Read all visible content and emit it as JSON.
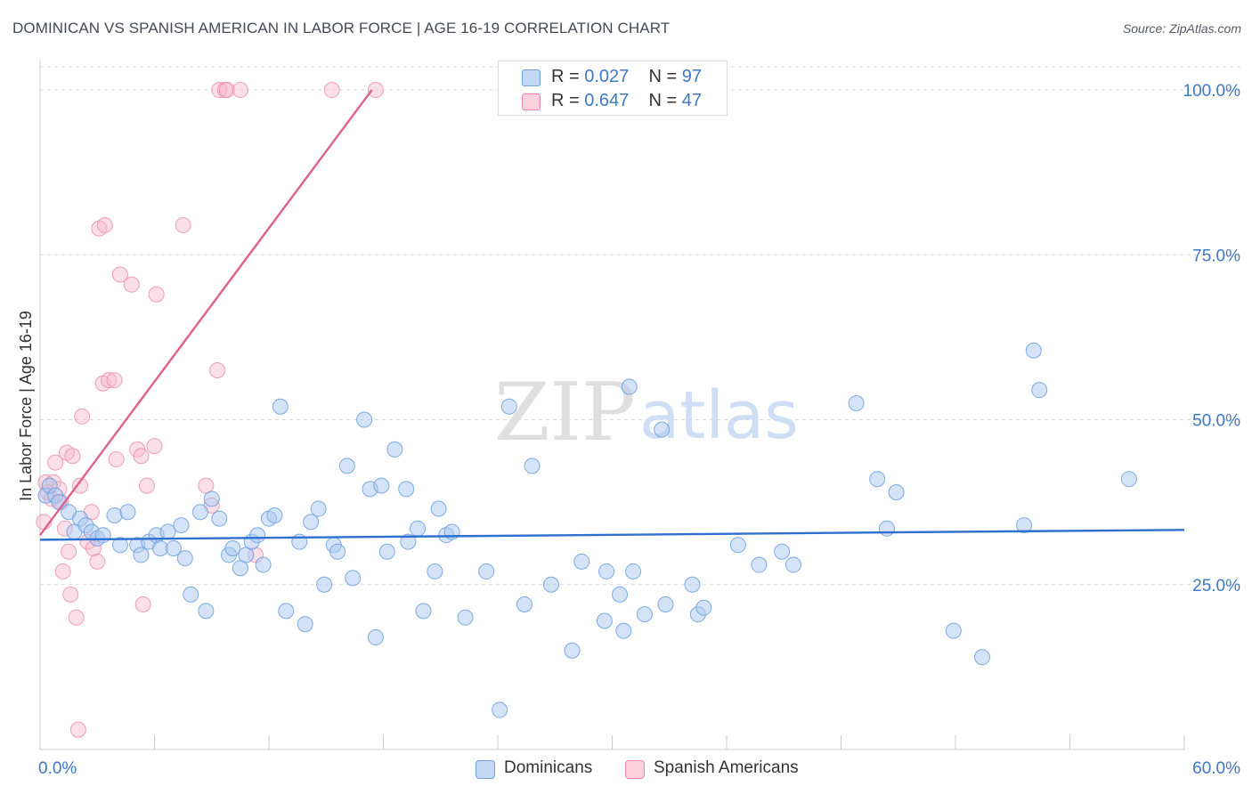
{
  "header": {
    "title": "DOMINICAN VS SPANISH AMERICAN IN LABOR FORCE | AGE 16-19 CORRELATION CHART",
    "source": "Source: ZipAtlas.com"
  },
  "watermark": {
    "zip": "ZIP",
    "atlas": "atlas"
  },
  "legend": {
    "rows": [
      {
        "r_label": "R = ",
        "r_value": "0.027",
        "n_label": "N = ",
        "n_value": "97",
        "color": "#a9c8ef"
      },
      {
        "r_label": "R = ",
        "r_value": "0.647",
        "n_label": "N = ",
        "n_value": "47",
        "color": "#f6b9cb"
      }
    ]
  },
  "bottom_legend": {
    "items": [
      {
        "label": "Dominicans",
        "color": "#a9c8ef"
      },
      {
        "label": "Spanish Americans",
        "color": "#f6b9cb"
      }
    ]
  },
  "chart_data": {
    "type": "scatter",
    "title": "DOMINICAN VS SPANISH AMERICAN IN LABOR FORCE | AGE 16-19 CORRELATION CHART",
    "xlabel": "",
    "ylabel": "In Labor Force | Age 16-19",
    "xlim": [
      0,
      60
    ],
    "ylim": [
      0,
      105
    ],
    "x_tick_labels": [
      "0.0%",
      "60.0%"
    ],
    "y_ticks": [
      25,
      50,
      75,
      100
    ],
    "y_tick_labels": [
      "25.0%",
      "50.0%",
      "75.0%",
      "100.0%"
    ],
    "grid": true,
    "series": [
      {
        "name": "Dominicans",
        "color": "#a9c8ef",
        "stroke": "#6a9fe0",
        "line_color": "#2f6fd0",
        "trend": {
          "x": [
            0,
            60
          ],
          "y": [
            31.8,
            33.3
          ]
        },
        "points": [
          [
            0.3,
            38.5
          ],
          [
            0.5,
            40
          ],
          [
            0.8,
            38.5
          ],
          [
            1.0,
            37.5
          ],
          [
            1.5,
            36
          ],
          [
            1.8,
            33
          ],
          [
            2.1,
            35
          ],
          [
            2.4,
            34
          ],
          [
            2.7,
            33
          ],
          [
            3.0,
            32
          ],
          [
            3.3,
            32.5
          ],
          [
            3.9,
            35.5
          ],
          [
            4.2,
            31
          ],
          [
            4.6,
            36
          ],
          [
            5.1,
            31
          ],
          [
            5.3,
            29.5
          ],
          [
            5.7,
            31.5
          ],
          [
            6.1,
            32.5
          ],
          [
            6.3,
            30.5
          ],
          [
            6.7,
            33
          ],
          [
            7.0,
            30.5
          ],
          [
            7.4,
            34
          ],
          [
            7.6,
            29
          ],
          [
            7.9,
            23.5
          ],
          [
            8.4,
            36
          ],
          [
            8.7,
            21
          ],
          [
            9.0,
            38
          ],
          [
            9.4,
            35
          ],
          [
            9.9,
            29.5
          ],
          [
            10.1,
            30.5
          ],
          [
            10.5,
            27.5
          ],
          [
            10.8,
            29.5
          ],
          [
            11.1,
            31.5
          ],
          [
            11.4,
            32.5
          ],
          [
            11.7,
            28
          ],
          [
            12.0,
            35
          ],
          [
            12.3,
            35.5
          ],
          [
            12.6,
            52
          ],
          [
            12.9,
            21
          ],
          [
            13.6,
            31.5
          ],
          [
            13.9,
            19
          ],
          [
            14.2,
            34.5
          ],
          [
            14.6,
            36.5
          ],
          [
            14.9,
            25
          ],
          [
            15.4,
            31
          ],
          [
            15.6,
            30
          ],
          [
            16.1,
            43
          ],
          [
            16.4,
            26
          ],
          [
            17.0,
            50
          ],
          [
            17.3,
            39.5
          ],
          [
            17.6,
            17
          ],
          [
            17.9,
            40
          ],
          [
            18.2,
            30
          ],
          [
            18.6,
            45.5
          ],
          [
            19.2,
            39.5
          ],
          [
            19.3,
            31.5
          ],
          [
            19.8,
            33.5
          ],
          [
            20.1,
            21
          ],
          [
            20.7,
            27
          ],
          [
            20.9,
            36.5
          ],
          [
            21.3,
            32.5
          ],
          [
            21.6,
            33
          ],
          [
            22.3,
            20
          ],
          [
            23.4,
            27
          ],
          [
            24.1,
            6
          ],
          [
            24.6,
            52
          ],
          [
            25.4,
            22
          ],
          [
            25.8,
            43
          ],
          [
            26.8,
            25
          ],
          [
            27.9,
            15
          ],
          [
            28.4,
            28.5
          ],
          [
            29.6,
            19.5
          ],
          [
            29.7,
            27
          ],
          [
            30.4,
            23.5
          ],
          [
            30.6,
            18
          ],
          [
            30.9,
            55
          ],
          [
            31.1,
            27
          ],
          [
            31.7,
            20.5
          ],
          [
            32.6,
            48.5
          ],
          [
            32.8,
            22
          ],
          [
            34.2,
            25
          ],
          [
            34.5,
            20.5
          ],
          [
            34.8,
            21.5
          ],
          [
            36.6,
            31
          ],
          [
            37.7,
            28
          ],
          [
            38.9,
            30
          ],
          [
            39.5,
            28
          ],
          [
            42.8,
            52.5
          ],
          [
            43.9,
            41
          ],
          [
            44.4,
            33.5
          ],
          [
            44.9,
            39
          ],
          [
            47.9,
            18
          ],
          [
            49.4,
            14
          ],
          [
            51.6,
            34
          ],
          [
            52.1,
            60.5
          ],
          [
            52.4,
            54.5
          ],
          [
            57.1,
            41
          ]
        ]
      },
      {
        "name": "Spanish Americans",
        "color": "#f6b9cb",
        "stroke": "#ec8aa8",
        "line_color": "#e05f8d",
        "trend": {
          "x": [
            0,
            17.4
          ],
          "y": [
            32.5,
            100
          ]
        },
        "points": [
          [
            0.2,
            34.5
          ],
          [
            0.3,
            40.5
          ],
          [
            0.4,
            39
          ],
          [
            0.7,
            40.5
          ],
          [
            0.8,
            43.5
          ],
          [
            1.0,
            39.5
          ],
          [
            1.1,
            37.5
          ],
          [
            1.2,
            27
          ],
          [
            1.3,
            33.5
          ],
          [
            1.4,
            45
          ],
          [
            1.5,
            30
          ],
          [
            1.6,
            23.5
          ],
          [
            1.7,
            44.5
          ],
          [
            1.9,
            20
          ],
          [
            2.1,
            40
          ],
          [
            2.2,
            50.5
          ],
          [
            2.5,
            31.5
          ],
          [
            2.7,
            36
          ],
          [
            2.8,
            30.5
          ],
          [
            3.0,
            28.5
          ],
          [
            3.1,
            79
          ],
          [
            3.3,
            55.5
          ],
          [
            3.4,
            79.5
          ],
          [
            3.6,
            56
          ],
          [
            3.9,
            56
          ],
          [
            4.0,
            44
          ],
          [
            4.2,
            72
          ],
          [
            4.8,
            70.5
          ],
          [
            5.1,
            45.5
          ],
          [
            5.3,
            44.5
          ],
          [
            5.6,
            40
          ],
          [
            5.4,
            22
          ],
          [
            6.0,
            46
          ],
          [
            6.1,
            69
          ],
          [
            7.5,
            79.5
          ],
          [
            8.7,
            40
          ],
          [
            9.0,
            37
          ],
          [
            9.3,
            57.5
          ],
          [
            9.4,
            100
          ],
          [
            9.7,
            100
          ],
          [
            9.8,
            100
          ],
          [
            10.5,
            100
          ],
          [
            11.3,
            29.5
          ],
          [
            15.3,
            100
          ],
          [
            17.6,
            100
          ],
          [
            2.0,
            3
          ],
          [
            0.6,
            38
          ]
        ]
      }
    ]
  }
}
